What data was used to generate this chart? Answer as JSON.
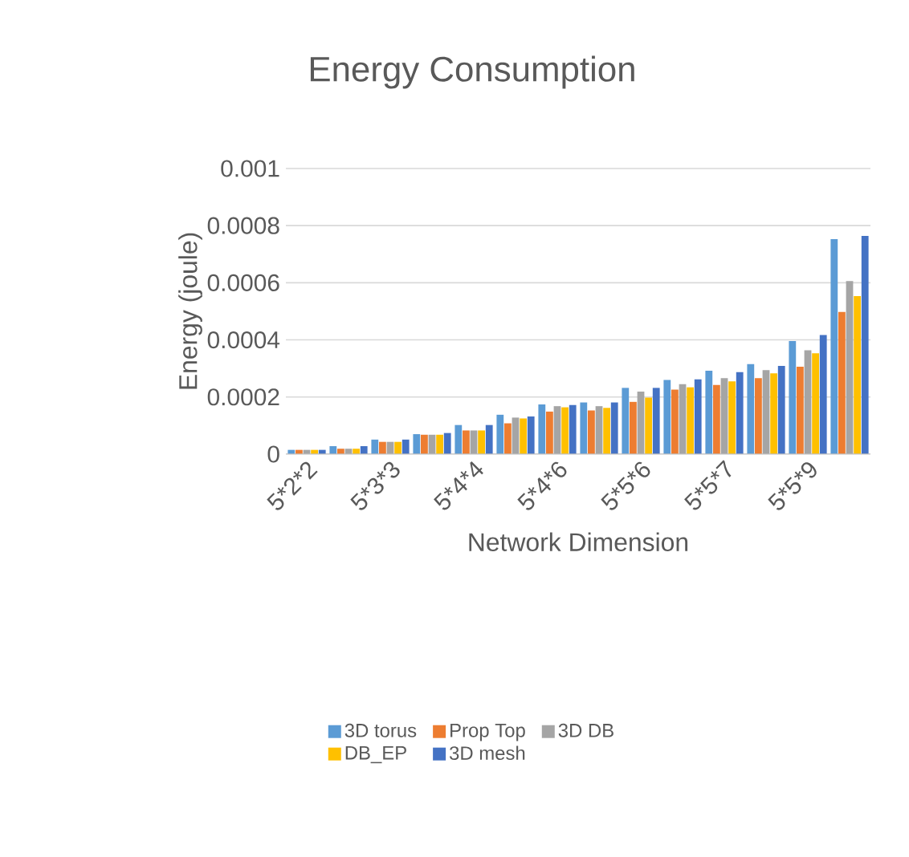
{
  "chart_data": {
    "type": "bar",
    "title": "Energy  Consumption",
    "xlabel": "Network Dimension",
    "ylabel": "Energy (joule)",
    "categories": [
      "5*2*2",
      null,
      "5*3*3",
      null,
      "5*4*4",
      null,
      "5*4*6",
      null,
      "5*5*6",
      null,
      "5*5*7",
      null,
      "5*5*9",
      null
    ],
    "series": [
      {
        "name": "3D torus",
        "color": "#5b9bd5",
        "values": [
          1.5e-05,
          2.8e-05,
          5.1e-05,
          7e-05,
          0.000102,
          0.000138,
          0.000174,
          0.000181,
          0.000232,
          0.00026,
          0.000292,
          0.000315,
          0.000396,
          0.000753
        ]
      },
      {
        "name": "Prop Top",
        "color": "#ed7d31",
        "values": [
          1.5e-05,
          1.9e-05,
          4.3e-05,
          6.8e-05,
          8.3e-05,
          0.000108,
          0.000149,
          0.000153,
          0.000183,
          0.000226,
          0.000242,
          0.000266,
          0.000306,
          0.000498
        ]
      },
      {
        "name": "3D DB",
        "color": "#a5a5a5",
        "values": [
          1.5e-05,
          1.9e-05,
          4.3e-05,
          6.8e-05,
          8.3e-05,
          0.000128,
          0.000168,
          0.000168,
          0.000219,
          0.000245,
          0.000266,
          0.000294,
          0.000364,
          0.000606
        ]
      },
      {
        "name": "DB_EP",
        "color": "#ffc000",
        "values": [
          1.5e-05,
          1.9e-05,
          4.3e-05,
          6.8e-05,
          8.3e-05,
          0.000125,
          0.000164,
          0.000162,
          0.000198,
          0.000234,
          0.000255,
          0.000283,
          0.000353,
          0.000553
        ]
      },
      {
        "name": "3D mesh",
        "color": "#4472c4",
        "values": [
          1.5e-05,
          2.8e-05,
          5.1e-05,
          7.4e-05,
          0.000102,
          0.000132,
          0.000172,
          0.000181,
          0.000232,
          0.000262,
          0.000287,
          0.000309,
          0.000417,
          0.000764
        ]
      }
    ],
    "ylim": [
      0,
      0.001
    ],
    "yticks": [
      0,
      0.0002,
      0.0004,
      0.0006,
      0.0008,
      0.001
    ],
    "grid": "y",
    "legend": "bottom"
  }
}
